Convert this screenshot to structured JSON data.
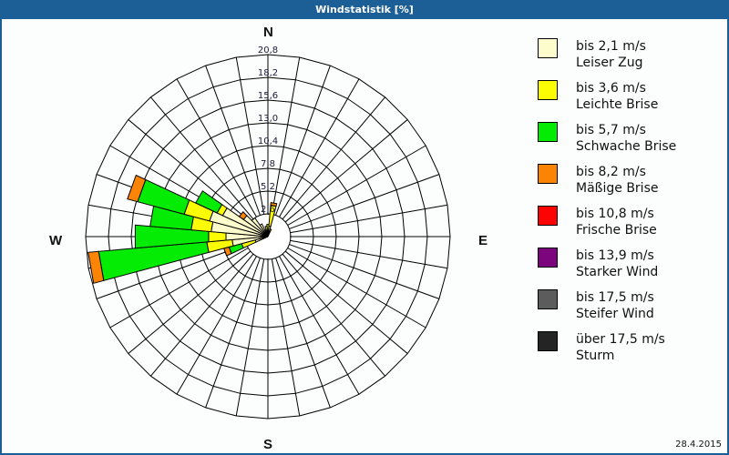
{
  "window": {
    "title": "Windstatistik [%]"
  },
  "footer": {
    "date": "28.4.2015"
  },
  "compass": {
    "N": "N",
    "E": "E",
    "S": "S",
    "W": "W"
  },
  "legend": [
    {
      "label": "bis 2,1 m/s",
      "sub": "Leiser Zug",
      "color": "#fdfccc"
    },
    {
      "label": "bis 3,6 m/s",
      "sub": "Leichte Brise",
      "color": "#fcfc04"
    },
    {
      "label": "bis 5,7 m/s",
      "sub": "Schwache Brise",
      "color": "#04ec04"
    },
    {
      "label": "bis 8,2 m/s",
      "sub": "Mäßige Brise",
      "color": "#fc8404"
    },
    {
      "label": "bis 10,8 m/s",
      "sub": "Frische Brise",
      "color": "#fc0404"
    },
    {
      "label": "bis 13,9 m/s",
      "sub": "Starker Wind",
      "color": "#7c047c"
    },
    {
      "label": "bis 17,5 m/s",
      "sub": "Steifer Wind",
      "color": "#5c5c5c"
    },
    {
      "label": "über 17,5 m/s",
      "sub": "Sturm",
      "color": "#242424"
    }
  ],
  "chart_data": {
    "type": "wind-rose",
    "title": "Windstatistik [%]",
    "unit": "%",
    "radial_ticks": [
      "2,6",
      "5,2",
      "7,8",
      "10,4",
      "13,0",
      "15,6",
      "18,2",
      "20,8"
    ],
    "rmax": 20.8,
    "sector_width_deg": 10,
    "speed_classes": [
      "bis 2,1 m/s",
      "bis 3,6 m/s",
      "bis 5,7 m/s",
      "bis 8,2 m/s",
      "bis 10,8 m/s",
      "bis 13,9 m/s",
      "bis 17,5 m/s",
      "über 17,5 m/s"
    ],
    "cumulative_note": "values are cumulative radii (%) per speed class, from innermost outward",
    "sectors": [
      {
        "dir": 0,
        "cum": [
          0.6,
          1.4
        ]
      },
      {
        "dir": 10,
        "cum": [
          1.2,
          3.6,
          3.6,
          3.9
        ]
      },
      {
        "dir": 20,
        "cum": [
          0.5,
          0.9
        ]
      },
      {
        "dir": 250,
        "cum": [
          1.5,
          3.1,
          4.6,
          5.2
        ]
      },
      {
        "dir": 260,
        "cum": [
          4.1,
          7.0,
          19.4,
          20.6
        ]
      },
      {
        "dir": 270,
        "cum": [
          4.8,
          6.8,
          15.2
        ]
      },
      {
        "dir": 280,
        "cum": [
          6.5,
          8.8,
          13.5
        ]
      },
      {
        "dir": 290,
        "cum": [
          6.9,
          9.9,
          15.4,
          16.6
        ]
      },
      {
        "dir": 300,
        "cum": [
          5.7,
          6.4,
          9.1
        ]
      },
      {
        "dir": 310,
        "cum": [
          3.4,
          3.4,
          3.4,
          4.0
        ]
      },
      {
        "dir": 320,
        "cum": [
          2.6
        ]
      },
      {
        "dir": 330,
        "cum": [
          1.6
        ]
      },
      {
        "dir": 340,
        "cum": [
          0.8
        ]
      },
      {
        "dir": 350,
        "cum": [
          0.7,
          1.2
        ]
      }
    ],
    "grid": {
      "rings": 8,
      "inner_blank_ring": 1,
      "compass_labels": [
        "N",
        "E",
        "S",
        "W"
      ]
    },
    "legend_position": "right"
  }
}
